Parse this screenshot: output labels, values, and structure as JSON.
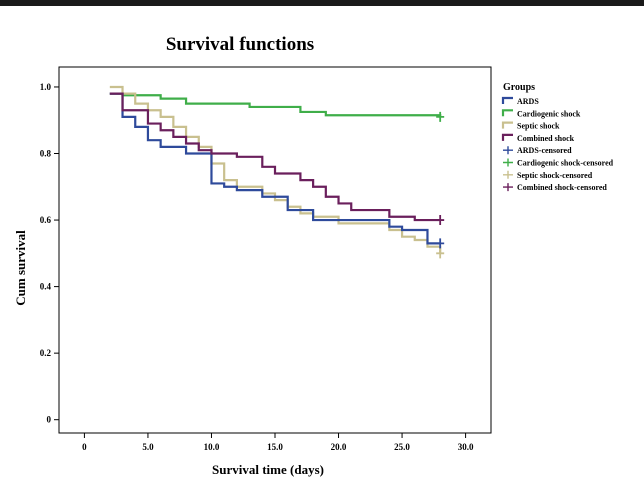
{
  "chart_data": {
    "type": "line",
    "step": true,
    "title": "Survival functions",
    "xlabel": "Survival time (days)",
    "ylabel": "Cum survival",
    "xlim": [
      -2,
      32
    ],
    "ylim": [
      -0.04,
      1.06
    ],
    "x_ticks": [
      0,
      5,
      10,
      15,
      20,
      25,
      30
    ],
    "x_tick_labels": [
      "0",
      "5.0",
      "10.0",
      "15.0",
      "20.0",
      "25.0",
      "30.0"
    ],
    "y_ticks": [
      0,
      0.2,
      0.4,
      0.6,
      0.8,
      1.0
    ],
    "y_tick_labels": [
      "0",
      "0.2",
      "0.4",
      "0.6",
      "0.8",
      "1.0"
    ],
    "grid": false,
    "legend_title": "Groups",
    "legend_position": "right",
    "legend_entries": [
      {
        "label": "ARDS",
        "color": "#2e4a9b",
        "kind": "step"
      },
      {
        "label": "Cardiogenic shock",
        "color": "#3fae49",
        "kind": "step"
      },
      {
        "label": "Septic shock",
        "color": "#c9c08f",
        "kind": "step"
      },
      {
        "label": "Combined shock",
        "color": "#6a1f5c",
        "kind": "step"
      },
      {
        "label": "ARDS-censored",
        "color": "#2e4a9b",
        "kind": "censor"
      },
      {
        "label": "Cardiogenic shock-censored",
        "color": "#3fae49",
        "kind": "censor"
      },
      {
        "label": "Septic shock-censored",
        "color": "#c9c08f",
        "kind": "censor"
      },
      {
        "label": "Combined shock-censored",
        "color": "#6a1f5c",
        "kind": "censor"
      }
    ],
    "series": [
      {
        "name": "Cardiogenic shock",
        "color": "#3fae49",
        "x": [
          2,
          3,
          6,
          8,
          13,
          17,
          19,
          28
        ],
        "y": [
          0.98,
          0.975,
          0.965,
          0.95,
          0.94,
          0.925,
          0.915,
          0.91
        ],
        "censored": [
          [
            28,
            0.91
          ]
        ]
      },
      {
        "name": "Septic shock",
        "color": "#c9c08f",
        "x": [
          2,
          3,
          4,
          5,
          6,
          7,
          8,
          9,
          10,
          11,
          12,
          14,
          15,
          16,
          17,
          18,
          20,
          24,
          25,
          26,
          27,
          28
        ],
        "y": [
          1.0,
          0.98,
          0.95,
          0.93,
          0.91,
          0.88,
          0.85,
          0.82,
          0.77,
          0.72,
          0.7,
          0.68,
          0.66,
          0.64,
          0.62,
          0.61,
          0.59,
          0.57,
          0.55,
          0.54,
          0.52,
          0.5
        ],
        "censored": [
          [
            28,
            0.5
          ]
        ]
      },
      {
        "name": "ARDS",
        "color": "#2e4a9b",
        "x": [
          2,
          3,
          4,
          5,
          6,
          8,
          10,
          11,
          12,
          14,
          16,
          18,
          24,
          25,
          27,
          28
        ],
        "y": [
          0.98,
          0.91,
          0.88,
          0.84,
          0.82,
          0.8,
          0.71,
          0.7,
          0.69,
          0.67,
          0.63,
          0.6,
          0.58,
          0.57,
          0.53,
          0.53
        ],
        "censored": [
          [
            28,
            0.53
          ]
        ]
      },
      {
        "name": "Combined shock",
        "color": "#6a1f5c",
        "x": [
          2,
          3,
          5,
          6,
          7,
          8,
          9,
          10,
          12,
          14,
          15,
          17,
          18,
          19,
          20,
          21,
          24,
          26,
          28
        ],
        "y": [
          0.98,
          0.93,
          0.89,
          0.87,
          0.85,
          0.83,
          0.81,
          0.8,
          0.79,
          0.76,
          0.74,
          0.72,
          0.7,
          0.67,
          0.65,
          0.63,
          0.61,
          0.6,
          0.6
        ],
        "censored": [
          [
            28,
            0.6
          ]
        ]
      }
    ]
  }
}
